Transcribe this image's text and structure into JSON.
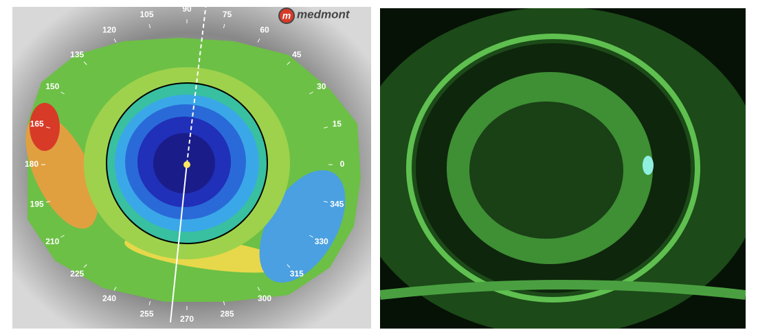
{
  "topography": {
    "brand_icon": "m",
    "brand": "medmont",
    "angle_labels": [
      "0",
      "15",
      "30",
      "45",
      "60",
      "75",
      "90",
      "105",
      "120",
      "135",
      "150",
      "165",
      "180",
      "195",
      "210",
      "225",
      "240",
      "255",
      "270",
      "285",
      "300",
      "315",
      "330",
      "345"
    ]
  }
}
